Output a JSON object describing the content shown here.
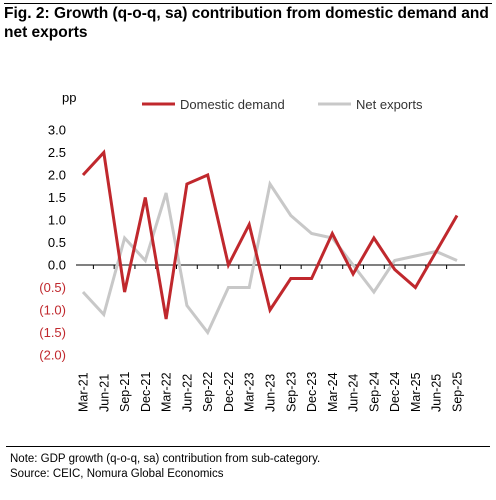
{
  "header": {
    "title": "Fig. 2: Growth (q-o-q, sa) contribution from domestic demand and net exports"
  },
  "footer": {
    "note": "Note: GDP growth (q-o-q, sa) contribution from sub-category.",
    "source": "Source: CEIC, Nomura Global Economics"
  },
  "colors": {
    "domestic": "#c0282d",
    "net_exports": "#c8c8c8",
    "negative_tick": "#c0282d"
  },
  "chart_data": {
    "type": "line",
    "title": "",
    "ylabel": "pp",
    "xlabel": "",
    "ylim": [
      -2.0,
      3.0
    ],
    "yticks": [
      3.0,
      2.5,
      2.0,
      1.5,
      1.0,
      0.5,
      0.0,
      -0.5,
      -1.0,
      -1.5,
      -2.0
    ],
    "ytick_labels": [
      "3.0",
      "2.5",
      "2.0",
      "1.5",
      "1.0",
      "0.5",
      "0.0",
      "(0.5)",
      "(1.0)",
      "(1.5)",
      "(2.0)"
    ],
    "legend_position": "top",
    "grid": false,
    "categories": [
      "Mar-21",
      "Jun-21",
      "Sep-21",
      "Dec-21",
      "Mar-22",
      "Jun-22",
      "Sep-22",
      "Dec-22",
      "Mar-23",
      "Jun-23",
      "Sep-23",
      "Dec-23",
      "Mar-24",
      "Jun-24",
      "Sep-24",
      "Dec-24",
      "Mar-25",
      "Jun-25",
      "Sep-25"
    ],
    "series": [
      {
        "name": "Domestic demand",
        "color": "#c0282d",
        "values": [
          2.0,
          2.5,
          -0.6,
          1.5,
          -1.2,
          1.8,
          2.0,
          0.0,
          0.9,
          -1.0,
          -0.3,
          -0.3,
          0.7,
          -0.2,
          0.6,
          -0.1,
          -0.5,
          0.3,
          1.1
        ]
      },
      {
        "name": "Net exports",
        "color": "#c8c8c8",
        "values": [
          -0.6,
          -1.1,
          0.6,
          0.1,
          1.6,
          -0.9,
          -1.5,
          -0.5,
          -0.5,
          1.8,
          1.1,
          0.7,
          0.6,
          0.0,
          -0.6,
          0.1,
          0.2,
          0.3,
          0.1
        ]
      }
    ]
  }
}
